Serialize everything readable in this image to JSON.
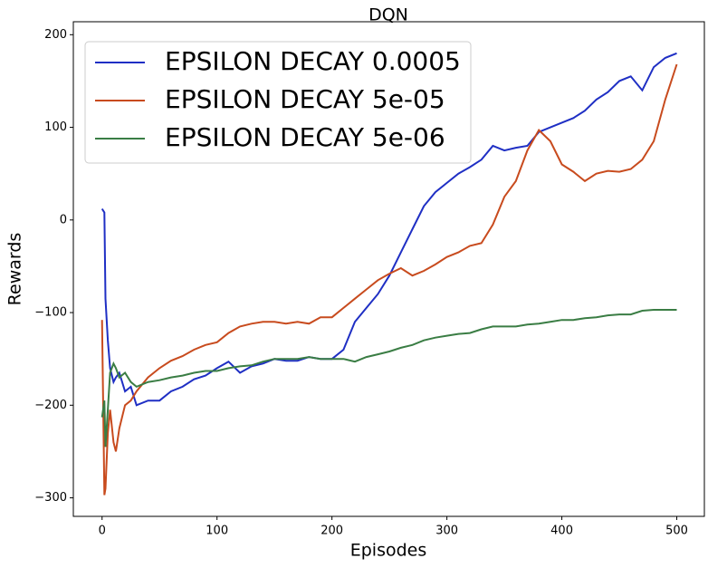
{
  "chart_data": {
    "type": "line",
    "title": "DQN",
    "x_label": "Episodes",
    "y_label": "Rewards",
    "x": [
      0,
      2,
      3,
      5,
      7,
      10,
      12,
      15,
      20,
      25,
      30,
      40,
      50,
      60,
      70,
      80,
      90,
      100,
      110,
      120,
      130,
      140,
      150,
      160,
      170,
      180,
      190,
      200,
      210,
      220,
      230,
      240,
      250,
      260,
      270,
      280,
      290,
      300,
      310,
      320,
      330,
      340,
      350,
      360,
      370,
      380,
      390,
      400,
      410,
      420,
      430,
      440,
      450,
      460,
      470,
      480,
      490,
      500
    ],
    "series": [
      {
        "name": "EPSILON DECAY 0.0005",
        "color": "#1f2fc4",
        "values": [
          12,
          8,
          -85,
          -130,
          -160,
          -175,
          -170,
          -165,
          -185,
          -180,
          -200,
          -195,
          -195,
          -185,
          -180,
          -172,
          -168,
          -160,
          -153,
          -165,
          -158,
          -155,
          -150,
          -152,
          -152,
          -148,
          -150,
          -150,
          -140,
          -110,
          -95,
          -80,
          -60,
          -35,
          -10,
          15,
          30,
          40,
          50,
          57,
          65,
          80,
          75,
          78,
          80,
          95,
          100,
          105,
          110,
          118,
          130,
          138,
          150,
          155,
          140,
          165,
          175,
          180
        ]
      },
      {
        "name": "EPSILON DECAY 5e-05",
        "color": "#c84b1e",
        "values": [
          -108,
          -297,
          -290,
          -230,
          -205,
          -240,
          -250,
          -225,
          -200,
          -195,
          -185,
          -170,
          -160,
          -152,
          -147,
          -140,
          -135,
          -132,
          -122,
          -115,
          -112,
          -110,
          -110,
          -112,
          -110,
          -112,
          -105,
          -105,
          -95,
          -85,
          -75,
          -65,
          -58,
          -52,
          -60,
          -55,
          -48,
          -40,
          -35,
          -28,
          -25,
          -5,
          25,
          42,
          75,
          97,
          85,
          60,
          52,
          42,
          50,
          53,
          52,
          55,
          65,
          85,
          130,
          168
        ]
      },
      {
        "name": "EPSILON DECAY 5e-06",
        "color": "#3a7d44",
        "values": [
          -213,
          -195,
          -245,
          -205,
          -165,
          -155,
          -160,
          -170,
          -165,
          -175,
          -180,
          -175,
          -173,
          -170,
          -168,
          -165,
          -163,
          -163,
          -160,
          -158,
          -157,
          -153,
          -150,
          -150,
          -150,
          -148,
          -150,
          -150,
          -150,
          -153,
          -148,
          -145,
          -142,
          -138,
          -135,
          -130,
          -127,
          -125,
          -123,
          -122,
          -118,
          -115,
          -115,
          -115,
          -113,
          -112,
          -110,
          -108,
          -108,
          -106,
          -105,
          -103,
          -102,
          -102,
          -98,
          -97,
          -97,
          -97
        ]
      }
    ],
    "xlim": [
      -25,
      524
    ],
    "ylim": [
      -320,
      214
    ],
    "xticks": [
      0,
      100,
      200,
      300,
      400,
      500
    ],
    "yticks": [
      {
        "value": -300,
        "label": "−300"
      },
      {
        "value": -200,
        "label": "−200"
      },
      {
        "value": -100,
        "label": "−100"
      },
      0,
      100,
      200
    ],
    "legend": "upper left"
  }
}
